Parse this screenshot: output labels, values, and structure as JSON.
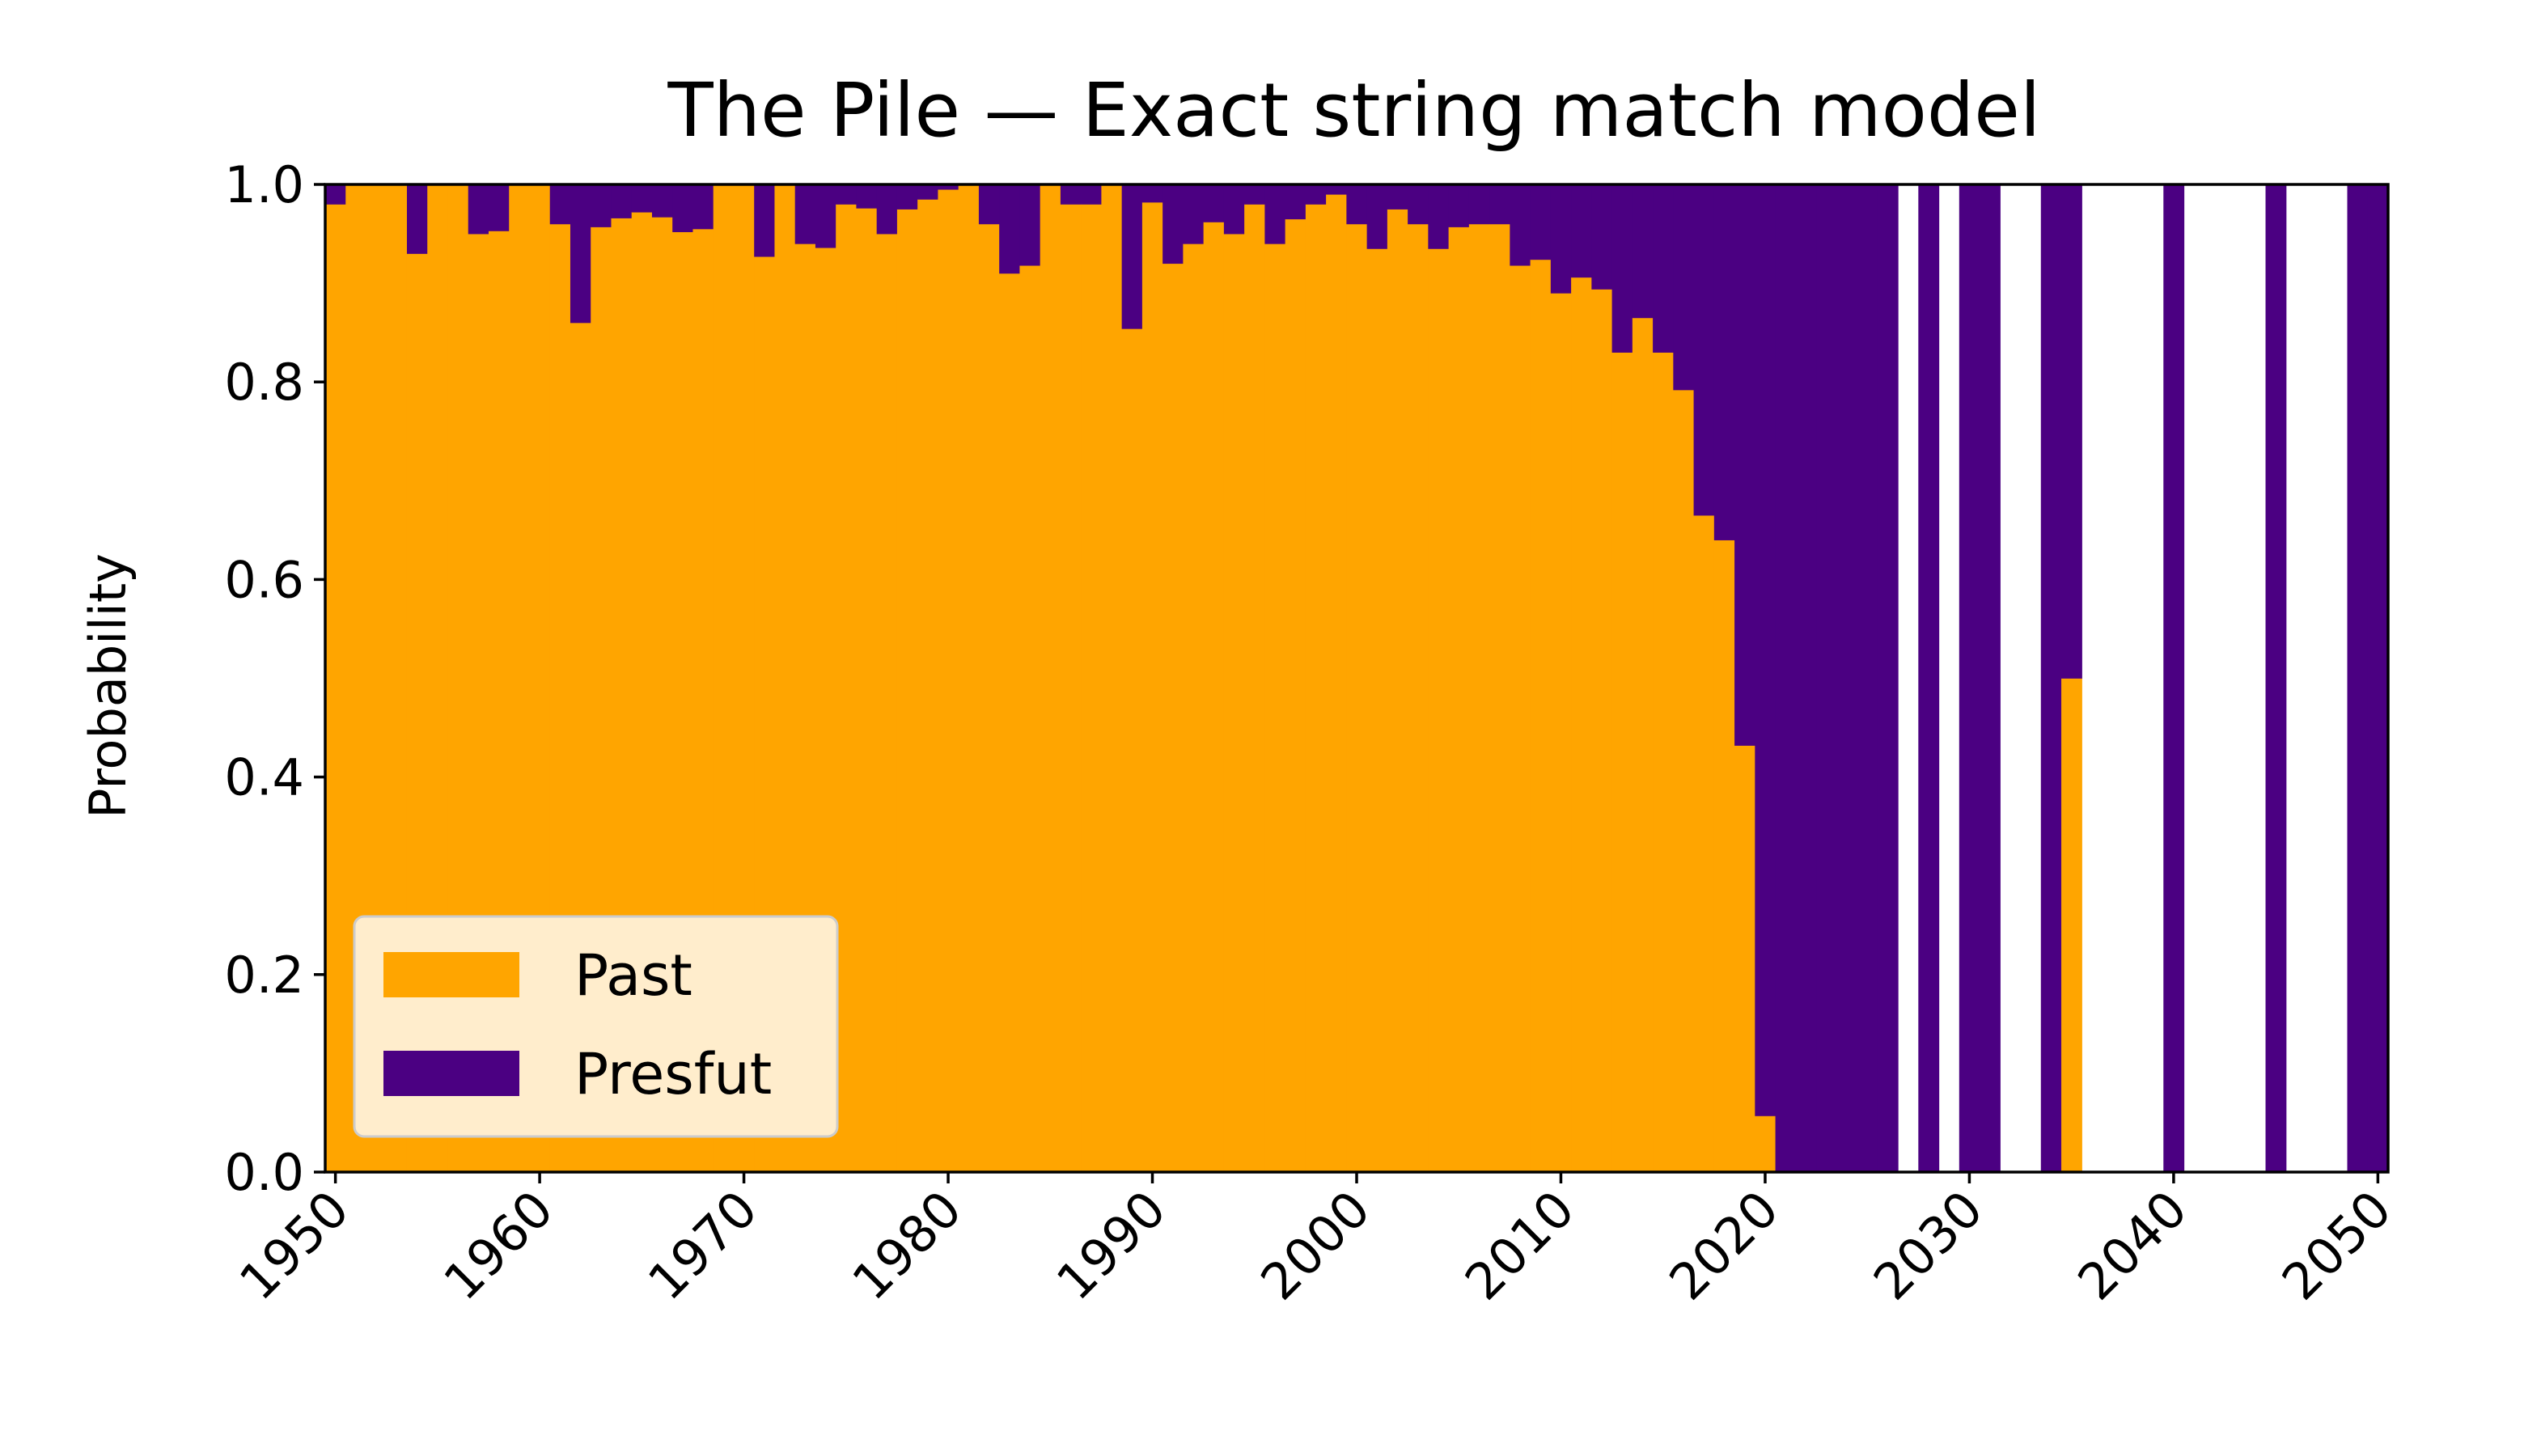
{
  "chart_data": {
    "type": "bar",
    "stacked": true,
    "title": "The Pile — Exact string match model",
    "xlabel": "",
    "ylabel": "Probability",
    "xlim": [
      1949.5,
      2050.5
    ],
    "ylim": [
      0,
      1
    ],
    "xticks": [
      1950,
      1960,
      1970,
      1980,
      1990,
      2000,
      2010,
      2020,
      2030,
      2040,
      2050
    ],
    "xtick_labels": [
      "1950",
      "1960",
      "1970",
      "1980",
      "1990",
      "2000",
      "2010",
      "2020",
      "2030",
      "2040",
      "2050"
    ],
    "xtick_rotation": 45,
    "yticks": [
      0.0,
      0.2,
      0.4,
      0.6,
      0.8,
      1.0
    ],
    "ytick_labels": [
      "0.0",
      "0.2",
      "0.4",
      "0.6",
      "0.8",
      "1.0"
    ],
    "grid": false,
    "legend_position": "lower-left",
    "colors": {
      "Past": "#ffa500",
      "Presfut": "#4b0082"
    },
    "legend": [
      {
        "name": "Past",
        "color": "#ffa500"
      },
      {
        "name": "Presfut",
        "color": "#4b0082"
      }
    ],
    "x": [
      1950,
      1951,
      1952,
      1953,
      1954,
      1955,
      1956,
      1957,
      1958,
      1959,
      1960,
      1961,
      1962,
      1963,
      1964,
      1965,
      1966,
      1967,
      1968,
      1969,
      1970,
      1971,
      1972,
      1973,
      1974,
      1975,
      1976,
      1977,
      1978,
      1979,
      1980,
      1981,
      1982,
      1983,
      1984,
      1985,
      1986,
      1987,
      1988,
      1989,
      1990,
      1991,
      1992,
      1993,
      1994,
      1995,
      1996,
      1997,
      1998,
      1999,
      2000,
      2001,
      2002,
      2003,
      2004,
      2005,
      2006,
      2007,
      2008,
      2009,
      2010,
      2011,
      2012,
      2013,
      2014,
      2015,
      2016,
      2017,
      2018,
      2019,
      2020,
      2021,
      2022,
      2023,
      2024,
      2025,
      2026,
      2028,
      2030,
      2031,
      2034,
      2035,
      2040,
      2045,
      2049,
      2050
    ],
    "series": [
      {
        "name": "Past",
        "values": [
          0.98,
          1.0,
          1.0,
          1.0,
          0.93,
          1.0,
          1.0,
          0.95,
          0.953,
          1.0,
          1.0,
          0.96,
          0.86,
          0.957,
          0.966,
          0.972,
          0.967,
          0.952,
          0.955,
          1.0,
          1.0,
          0.927,
          1.0,
          0.94,
          0.936,
          0.98,
          0.976,
          0.95,
          0.975,
          0.985,
          0.995,
          1.0,
          0.96,
          0.91,
          0.918,
          1.0,
          0.98,
          0.98,
          1.0,
          0.854,
          0.982,
          0.92,
          0.94,
          0.962,
          0.95,
          0.98,
          0.94,
          0.965,
          0.98,
          0.99,
          0.96,
          0.935,
          0.975,
          0.96,
          0.935,
          0.957,
          0.96,
          0.96,
          0.918,
          0.924,
          0.89,
          0.906,
          0.894,
          0.83,
          0.865,
          0.83,
          0.792,
          0.665,
          0.64,
          0.432,
          0.057,
          0,
          0,
          0,
          0,
          0,
          0,
          0,
          0,
          0,
          0,
          0.5,
          0,
          0,
          0,
          0
        ]
      },
      {
        "name": "Presfut",
        "values": [
          0.02,
          0,
          0,
          0,
          0.07,
          0,
          0,
          0.05,
          0.047,
          0,
          0,
          0.04,
          0.14,
          0.043,
          0.034,
          0.028,
          0.033,
          0.048,
          0.045,
          0,
          0,
          0.073,
          0,
          0.06,
          0.064,
          0.02,
          0.024,
          0.05,
          0.025,
          0.015,
          0.005,
          0,
          0.04,
          0.09,
          0.082,
          0,
          0.02,
          0.02,
          0,
          0.146,
          0.018,
          0.08,
          0.06,
          0.038,
          0.05,
          0.02,
          0.06,
          0.035,
          0.02,
          0.01,
          0.04,
          0.065,
          0.025,
          0.04,
          0.065,
          0.043,
          0.04,
          0.04,
          0.082,
          0.076,
          0.11,
          0.094,
          0.106,
          0.17,
          0.135,
          0.17,
          0.208,
          0.335,
          0.36,
          0.568,
          0.943,
          1,
          1,
          1,
          1,
          1,
          1,
          1,
          1,
          1,
          1,
          0.5,
          1,
          1,
          1,
          1
        ]
      }
    ]
  }
}
